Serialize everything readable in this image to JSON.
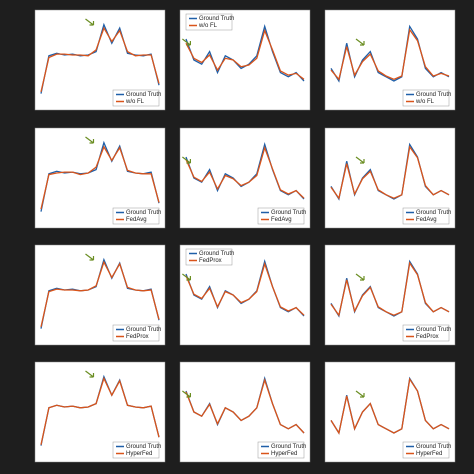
{
  "chart_data": [
    {
      "type": "line",
      "legend": "lower right",
      "ylim": [
        0,
        1
      ],
      "series": [
        {
          "name": "Ground Truth",
          "color": "#1f5fa8",
          "values": [
            0.1,
            0.55,
            0.58,
            0.56,
            0.57,
            0.55,
            0.56,
            0.6,
            0.92,
            0.7,
            0.88,
            0.58,
            0.56,
            0.55,
            0.57,
            0.2
          ]
        },
        {
          "name": "w/o FL",
          "color": "#d9541a",
          "values": [
            0.12,
            0.53,
            0.57,
            0.57,
            0.56,
            0.56,
            0.55,
            0.62,
            0.88,
            0.72,
            0.85,
            0.6,
            0.55,
            0.56,
            0.56,
            0.22
          ]
        }
      ]
    },
    {
      "type": "line",
      "legend": "upper left",
      "ylim": [
        0,
        1
      ],
      "series": [
        {
          "name": "Ground Truth",
          "color": "#1f5fa8",
          "values": [
            0.75,
            0.5,
            0.45,
            0.6,
            0.35,
            0.55,
            0.5,
            0.4,
            0.45,
            0.55,
            0.9,
            0.6,
            0.35,
            0.3,
            0.35,
            0.25
          ]
        },
        {
          "name": "w/o FL",
          "color": "#d9541a",
          "values": [
            0.7,
            0.52,
            0.47,
            0.56,
            0.38,
            0.52,
            0.5,
            0.42,
            0.44,
            0.52,
            0.85,
            0.62,
            0.37,
            0.32,
            0.34,
            0.27
          ]
        }
      ]
    },
    {
      "type": "line",
      "legend": "lower right",
      "ylim": [
        0,
        1
      ],
      "series": [
        {
          "name": "Ground Truth",
          "color": "#1f5fa8",
          "values": [
            0.4,
            0.25,
            0.7,
            0.3,
            0.5,
            0.6,
            0.35,
            0.3,
            0.25,
            0.3,
            0.9,
            0.75,
            0.4,
            0.3,
            0.35,
            0.3
          ]
        },
        {
          "name": "w/o FL",
          "color": "#d9541a",
          "values": [
            0.38,
            0.27,
            0.66,
            0.32,
            0.48,
            0.57,
            0.37,
            0.31,
            0.27,
            0.31,
            0.86,
            0.73,
            0.42,
            0.31,
            0.34,
            0.31
          ]
        }
      ]
    },
    {
      "type": "line",
      "legend": "lower right",
      "ylim": [
        0,
        1
      ],
      "series": [
        {
          "name": "Ground Truth",
          "color": "#1f5fa8",
          "values": [
            0.1,
            0.55,
            0.58,
            0.56,
            0.57,
            0.55,
            0.56,
            0.6,
            0.92,
            0.7,
            0.88,
            0.58,
            0.56,
            0.55,
            0.57,
            0.2
          ]
        },
        {
          "name": "FedAvg",
          "color": "#d9541a",
          "values": [
            0.13,
            0.54,
            0.56,
            0.57,
            0.57,
            0.54,
            0.56,
            0.63,
            0.87,
            0.71,
            0.86,
            0.59,
            0.56,
            0.55,
            0.55,
            0.21
          ]
        }
      ]
    },
    {
      "type": "line",
      "legend": "lower right",
      "ylim": [
        0,
        1
      ],
      "series": [
        {
          "name": "Ground Truth",
          "color": "#1f5fa8",
          "values": [
            0.75,
            0.5,
            0.45,
            0.6,
            0.35,
            0.55,
            0.5,
            0.4,
            0.45,
            0.55,
            0.9,
            0.6,
            0.35,
            0.3,
            0.35,
            0.25
          ]
        },
        {
          "name": "FedAvg",
          "color": "#d9541a",
          "values": [
            0.72,
            0.51,
            0.46,
            0.57,
            0.37,
            0.53,
            0.49,
            0.41,
            0.45,
            0.53,
            0.86,
            0.61,
            0.36,
            0.31,
            0.35,
            0.26
          ]
        }
      ]
    },
    {
      "type": "line",
      "legend": "lower right",
      "ylim": [
        0,
        1
      ],
      "series": [
        {
          "name": "Ground Truth",
          "color": "#1f5fa8",
          "values": [
            0.4,
            0.25,
            0.7,
            0.3,
            0.5,
            0.6,
            0.35,
            0.3,
            0.25,
            0.3,
            0.9,
            0.75,
            0.4,
            0.3,
            0.35,
            0.3
          ]
        },
        {
          "name": "FedAvg",
          "color": "#d9541a",
          "values": [
            0.39,
            0.26,
            0.67,
            0.31,
            0.49,
            0.58,
            0.36,
            0.3,
            0.26,
            0.3,
            0.87,
            0.74,
            0.41,
            0.3,
            0.35,
            0.3
          ]
        }
      ]
    },
    {
      "type": "line",
      "legend": "lower right",
      "ylim": [
        0,
        1
      ],
      "series": [
        {
          "name": "Ground Truth",
          "color": "#1f5fa8",
          "values": [
            0.1,
            0.55,
            0.58,
            0.56,
            0.57,
            0.55,
            0.56,
            0.6,
            0.92,
            0.7,
            0.88,
            0.58,
            0.56,
            0.55,
            0.57,
            0.2
          ]
        },
        {
          "name": "FedProx",
          "color": "#d9541a",
          "values": [
            0.12,
            0.54,
            0.57,
            0.56,
            0.56,
            0.55,
            0.56,
            0.61,
            0.89,
            0.71,
            0.87,
            0.59,
            0.56,
            0.55,
            0.56,
            0.21
          ]
        }
      ]
    },
    {
      "type": "line",
      "legend": "upper left",
      "ylim": [
        0,
        1
      ],
      "series": [
        {
          "name": "Ground Truth",
          "color": "#1f5fa8",
          "values": [
            0.75,
            0.5,
            0.45,
            0.6,
            0.35,
            0.55,
            0.5,
            0.4,
            0.45,
            0.55,
            0.9,
            0.6,
            0.35,
            0.3,
            0.35,
            0.25
          ]
        },
        {
          "name": "FedProx",
          "color": "#d9541a",
          "values": [
            0.73,
            0.51,
            0.46,
            0.58,
            0.36,
            0.54,
            0.5,
            0.41,
            0.45,
            0.54,
            0.87,
            0.6,
            0.36,
            0.31,
            0.35,
            0.26
          ]
        }
      ]
    },
    {
      "type": "line",
      "legend": "lower right",
      "ylim": [
        0,
        1
      ],
      "series": [
        {
          "name": "Ground Truth",
          "color": "#1f5fa8",
          "values": [
            0.4,
            0.25,
            0.7,
            0.3,
            0.5,
            0.6,
            0.35,
            0.3,
            0.25,
            0.3,
            0.9,
            0.75,
            0.4,
            0.3,
            0.35,
            0.3
          ]
        },
        {
          "name": "FedProx",
          "color": "#d9541a",
          "values": [
            0.39,
            0.26,
            0.68,
            0.31,
            0.49,
            0.59,
            0.36,
            0.3,
            0.26,
            0.3,
            0.88,
            0.74,
            0.41,
            0.3,
            0.35,
            0.3
          ]
        }
      ]
    },
    {
      "type": "line",
      "legend": "lower right",
      "ylim": [
        0,
        1
      ],
      "series": [
        {
          "name": "Ground Truth",
          "color": "#1f5fa8",
          "values": [
            0.1,
            0.55,
            0.58,
            0.56,
            0.57,
            0.55,
            0.56,
            0.6,
            0.92,
            0.7,
            0.88,
            0.58,
            0.56,
            0.55,
            0.57,
            0.2
          ]
        },
        {
          "name": "HyperFed",
          "color": "#d9541a",
          "values": [
            0.11,
            0.55,
            0.58,
            0.56,
            0.57,
            0.55,
            0.56,
            0.6,
            0.9,
            0.7,
            0.87,
            0.58,
            0.56,
            0.55,
            0.57,
            0.2
          ]
        }
      ]
    },
    {
      "type": "line",
      "legend": "lower right",
      "ylim": [
        0,
        1
      ],
      "series": [
        {
          "name": "Ground Truth",
          "color": "#1f5fa8",
          "values": [
            0.75,
            0.5,
            0.45,
            0.6,
            0.35,
            0.55,
            0.5,
            0.4,
            0.45,
            0.55,
            0.9,
            0.6,
            0.35,
            0.3,
            0.35,
            0.25
          ]
        },
        {
          "name": "HyperFed",
          "color": "#d9541a",
          "values": [
            0.74,
            0.5,
            0.45,
            0.59,
            0.36,
            0.55,
            0.5,
            0.4,
            0.45,
            0.55,
            0.88,
            0.6,
            0.35,
            0.3,
            0.35,
            0.25
          ]
        }
      ]
    },
    {
      "type": "line",
      "legend": "lower right",
      "ylim": [
        0,
        1
      ],
      "series": [
        {
          "name": "Ground Truth",
          "color": "#1f5fa8",
          "values": [
            0.4,
            0.25,
            0.7,
            0.3,
            0.5,
            0.6,
            0.35,
            0.3,
            0.25,
            0.3,
            0.9,
            0.75,
            0.4,
            0.3,
            0.35,
            0.3
          ]
        },
        {
          "name": "HyperFed",
          "color": "#d9541a",
          "values": [
            0.4,
            0.25,
            0.69,
            0.3,
            0.5,
            0.6,
            0.35,
            0.3,
            0.25,
            0.3,
            0.89,
            0.75,
            0.4,
            0.3,
            0.35,
            0.3
          ]
        }
      ]
    }
  ]
}
